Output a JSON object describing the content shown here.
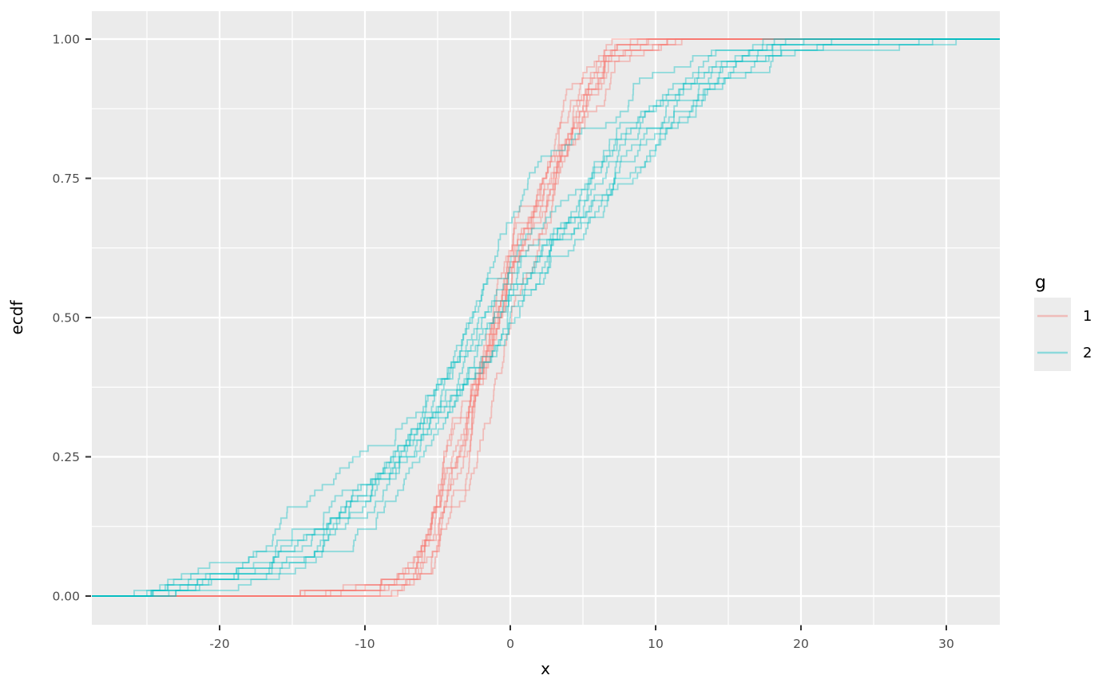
{
  "figure": {
    "background": "#FFFFFF",
    "panel_background": "#EBEBEB",
    "grid_major_color": "#FFFFFF",
    "grid_minor_color": "#FFFFFF",
    "tick_color": "#333333",
    "tick_label_color": "#4D4D4D",
    "legend_key_fill": "#ECECEC"
  },
  "chart_data": {
    "type": "line",
    "subtype": "ecdf_step",
    "title": "",
    "xlabel": "x",
    "ylabel": "ecdf",
    "xlim": [
      -28.8,
      33.7
    ],
    "ylim": [
      -0.05,
      1.05
    ],
    "x_major_ticks": [
      -20,
      -10,
      0,
      10,
      20,
      30
    ],
    "x_major_labels": [
      "-20",
      "-10",
      "0",
      "10",
      "20",
      "30"
    ],
    "x_minor_ticks": [
      -25,
      -15,
      -5,
      5,
      15,
      25
    ],
    "y_major_ticks": [
      0,
      0.25,
      0.5,
      0.75,
      1
    ],
    "y_major_labels": [
      "0.00",
      "0.25",
      "0.50",
      "0.75",
      "1.00"
    ],
    "y_minor_ticks": [
      0.125,
      0.375,
      0.625,
      0.875
    ],
    "grid": true,
    "legend_position": "right",
    "samples_per_curve": 100,
    "series": [
      {
        "name": "1",
        "color": "#F8766D",
        "opacity": 0.4,
        "n_curves": 9,
        "seeds": [
          3,
          17,
          42,
          58,
          71,
          89,
          104,
          123,
          140
        ],
        "quantiles": {
          "p": [
            0,
            0.01,
            0.03,
            0.05,
            0.1,
            0.2,
            0.3,
            0.4,
            0.5,
            0.6,
            0.7,
            0.8,
            0.9,
            0.95,
            0.98,
            0.99,
            1
          ],
          "x": [
            -15,
            -9,
            -7.8,
            -6.7,
            -5.5,
            -4.5,
            -2.9,
            -2.0,
            -0.9,
            0.3,
            2.2,
            3.6,
            5.4,
            6.6,
            8.3,
            9.3,
            12
          ]
        }
      },
      {
        "name": "2",
        "color": "#00BFC4",
        "opacity": 0.4,
        "n_curves": 9,
        "seeds": [
          7,
          21,
          34,
          49,
          63,
          77,
          92,
          110,
          131
        ],
        "quantiles": {
          "p": [
            0,
            0.01,
            0.03,
            0.05,
            0.1,
            0.2,
            0.3,
            0.4,
            0.5,
            0.6,
            0.7,
            0.8,
            0.9,
            0.95,
            0.98,
            0.99,
            1
          ],
          "x": [
            -27,
            -23.5,
            -19.5,
            -16.5,
            -13.5,
            -9.5,
            -6.3,
            -3.6,
            -1.3,
            1.0,
            4.6,
            7.8,
            12,
            15,
            18.4,
            20.5,
            31
          ]
        }
      }
    ],
    "legend": {
      "title": "g",
      "entries": [
        {
          "label": "1",
          "color": "#F8766D"
        },
        {
          "label": "2",
          "color": "#00BFC4"
        }
      ]
    }
  }
}
